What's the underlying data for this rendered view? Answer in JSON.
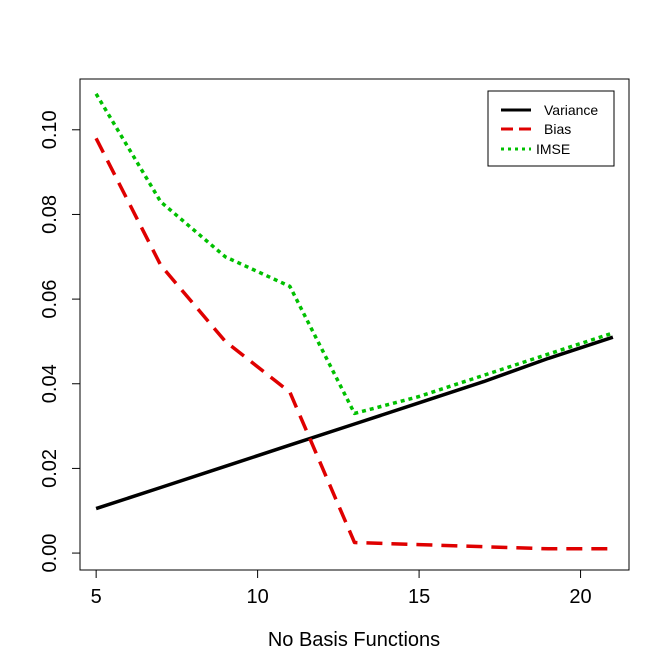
{
  "chart_data": {
    "type": "line",
    "title": "",
    "xlabel": "No Basis Functions",
    "ylabel": "",
    "xlim": [
      4.5,
      21.5
    ],
    "ylim": [
      -0.004,
      0.112
    ],
    "xticks": [
      5,
      10,
      15,
      20
    ],
    "xtick_labels": [
      "5",
      "10",
      "15",
      "20"
    ],
    "yticks": [
      0.0,
      0.02,
      0.04,
      0.06,
      0.08,
      0.1
    ],
    "ytick_labels": [
      "0.00",
      "0.02",
      "0.04",
      "0.06",
      "0.08",
      "0.10"
    ],
    "legend_position": "top-right",
    "x": [
      5,
      7,
      9,
      11,
      13,
      15,
      17,
      19,
      21
    ],
    "series": [
      {
        "name": "Variance",
        "color": "#000000",
        "dash": "solid",
        "values": [
          0.0105,
          0.0155,
          0.0205,
          0.0255,
          0.0305,
          0.0355,
          0.0405,
          0.046,
          0.051
        ]
      },
      {
        "name": "Bias",
        "color": "#DF0000",
        "dash": "dashed",
        "values": [
          0.098,
          0.068,
          0.05,
          0.038,
          0.0025,
          0.002,
          0.0015,
          0.001,
          0.001
        ]
      },
      {
        "name": "IMSE",
        "color": "#00C000",
        "dash": "dotted",
        "values": [
          0.1085,
          0.083,
          0.07,
          0.063,
          0.033,
          0.037,
          0.042,
          0.047,
          0.052
        ]
      }
    ]
  }
}
